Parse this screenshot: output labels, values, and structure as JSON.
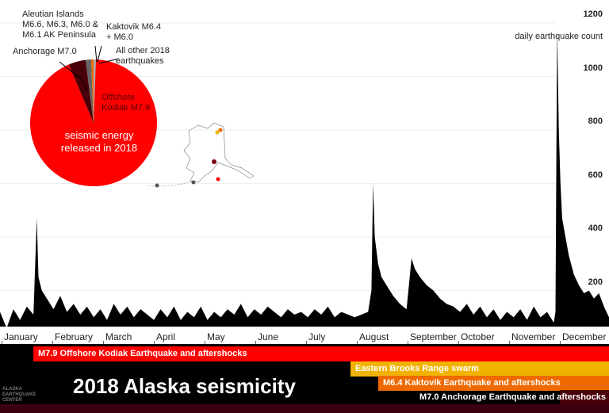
{
  "chart_data": {
    "type": "area",
    "title": "2018 Alaska seismicity",
    "ylabel": "daily earthquake count",
    "ylim": [
      0,
      1200
    ],
    "yticks": [
      200,
      400,
      600,
      800,
      1000,
      1200
    ],
    "grid": true,
    "xticks": [
      "January",
      "February",
      "March",
      "April",
      "May",
      "June",
      "July",
      "August",
      "September",
      "October",
      "November",
      "December"
    ],
    "color": "#000000",
    "points": [
      [
        "2018-01-01",
        120
      ],
      [
        "2018-01-05",
        60
      ],
      [
        "2018-01-09",
        130
      ],
      [
        "2018-01-13",
        90
      ],
      [
        "2018-01-17",
        140
      ],
      [
        "2018-01-21",
        110
      ],
      [
        "2018-01-23",
        470
      ],
      [
        "2018-01-24",
        250
      ],
      [
        "2018-01-26",
        200
      ],
      [
        "2018-01-29",
        170
      ],
      [
        "2018-02-02",
        130
      ],
      [
        "2018-02-06",
        180
      ],
      [
        "2018-02-10",
        120
      ],
      [
        "2018-02-14",
        150
      ],
      [
        "2018-02-18",
        110
      ],
      [
        "2018-02-22",
        140
      ],
      [
        "2018-02-26",
        100
      ],
      [
        "2018-03-02",
        130
      ],
      [
        "2018-03-06",
        90
      ],
      [
        "2018-03-10",
        150
      ],
      [
        "2018-03-14",
        110
      ],
      [
        "2018-03-18",
        140
      ],
      [
        "2018-03-22",
        100
      ],
      [
        "2018-03-26",
        130
      ],
      [
        "2018-03-30",
        110
      ],
      [
        "2018-04-03",
        90
      ],
      [
        "2018-04-07",
        130
      ],
      [
        "2018-04-11",
        100
      ],
      [
        "2018-04-15",
        140
      ],
      [
        "2018-04-19",
        90
      ],
      [
        "2018-04-23",
        120
      ],
      [
        "2018-04-27",
        100
      ],
      [
        "2018-05-01",
        140
      ],
      [
        "2018-05-05",
        90
      ],
      [
        "2018-05-09",
        120
      ],
      [
        "2018-05-13",
        100
      ],
      [
        "2018-05-17",
        130
      ],
      [
        "2018-05-21",
        110
      ],
      [
        "2018-05-25",
        150
      ],
      [
        "2018-05-29",
        100
      ],
      [
        "2018-06-02",
        130
      ],
      [
        "2018-06-06",
        110
      ],
      [
        "2018-06-10",
        140
      ],
      [
        "2018-06-14",
        120
      ],
      [
        "2018-06-18",
        100
      ],
      [
        "2018-06-22",
        130
      ],
      [
        "2018-06-26",
        110
      ],
      [
        "2018-06-30",
        120
      ],
      [
        "2018-07-04",
        100
      ],
      [
        "2018-07-08",
        130
      ],
      [
        "2018-07-12",
        110
      ],
      [
        "2018-07-16",
        140
      ],
      [
        "2018-07-20",
        100
      ],
      [
        "2018-07-24",
        120
      ],
      [
        "2018-07-28",
        110
      ],
      [
        "2018-08-01",
        100
      ],
      [
        "2018-08-05",
        110
      ],
      [
        "2018-08-09",
        120
      ],
      [
        "2018-08-11",
        200
      ],
      [
        "2018-08-12",
        600
      ],
      [
        "2018-08-13",
        400
      ],
      [
        "2018-08-15",
        300
      ],
      [
        "2018-08-17",
        250
      ],
      [
        "2018-08-20",
        220
      ],
      [
        "2018-08-24",
        180
      ],
      [
        "2018-08-28",
        150
      ],
      [
        "2018-09-01",
        130
      ],
      [
        "2018-09-04",
        320
      ],
      [
        "2018-09-06",
        280
      ],
      [
        "2018-09-09",
        250
      ],
      [
        "2018-09-13",
        220
      ],
      [
        "2018-09-17",
        200
      ],
      [
        "2018-09-21",
        170
      ],
      [
        "2018-09-25",
        150
      ],
      [
        "2018-09-29",
        140
      ],
      [
        "2018-10-03",
        120
      ],
      [
        "2018-10-07",
        150
      ],
      [
        "2018-10-11",
        110
      ],
      [
        "2018-10-15",
        140
      ],
      [
        "2018-10-19",
        100
      ],
      [
        "2018-10-23",
        130
      ],
      [
        "2018-10-27",
        90
      ],
      [
        "2018-10-31",
        120
      ],
      [
        "2018-11-04",
        100
      ],
      [
        "2018-11-08",
        130
      ],
      [
        "2018-11-12",
        90
      ],
      [
        "2018-11-16",
        140
      ],
      [
        "2018-11-20",
        100
      ],
      [
        "2018-11-24",
        120
      ],
      [
        "2018-11-28",
        80
      ],
      [
        "2018-11-29",
        120
      ],
      [
        "2018-11-30",
        1180
      ],
      [
        "2018-12-01",
        800
      ],
      [
        "2018-12-02",
        600
      ],
      [
        "2018-12-03",
        470
      ],
      [
        "2018-12-05",
        400
      ],
      [
        "2018-12-07",
        330
      ],
      [
        "2018-12-10",
        260
      ],
      [
        "2018-12-13",
        220
      ],
      [
        "2018-12-16",
        190
      ],
      [
        "2018-12-19",
        200
      ],
      [
        "2018-12-22",
        170
      ],
      [
        "2018-12-25",
        190
      ],
      [
        "2018-12-28",
        140
      ],
      [
        "2018-12-31",
        100
      ]
    ],
    "pie": {
      "center_label": "seismic energy released in 2018",
      "slices": [
        {
          "label": "All other 2018 earthquakes",
          "value": 0.6,
          "color": "#aaaaaa"
        },
        {
          "label": "Offshore Kodiak M7.9",
          "value": 93.0,
          "color": "#ff0000"
        },
        {
          "label": "Anchorage M7.0",
          "value": 4.4,
          "color": "#4a0008"
        },
        {
          "label": "Aleutian Islands M6.6, M6.3, M6.0 & M6.1 AK Peninsula",
          "value": 1.4,
          "color": "#666666"
        },
        {
          "label": "Kaktovik M6.4 + M6.0",
          "value": 0.6,
          "color": "#ee6a00"
        }
      ]
    },
    "sequences": [
      {
        "label": "M7.9 Offshore Kodiak Earthquake and aftershocks",
        "start": "2018-01-23",
        "color": "#ff0000"
      },
      {
        "label": "Eastern Brooks Range swarm",
        "start": "2018-08-01",
        "color": "#f0b400"
      },
      {
        "label": "M6.4 Kaktovik Earthquake and aftershocks",
        "start": "2018-08-12",
        "color": "#ee6a00"
      },
      {
        "label": "M7.0 Anchorage Earthquake and aftershocks",
        "start": "2018-11-30",
        "color": "#4a0008"
      }
    ]
  },
  "logo": "ALASKA EARTHQUAKE CENTER"
}
